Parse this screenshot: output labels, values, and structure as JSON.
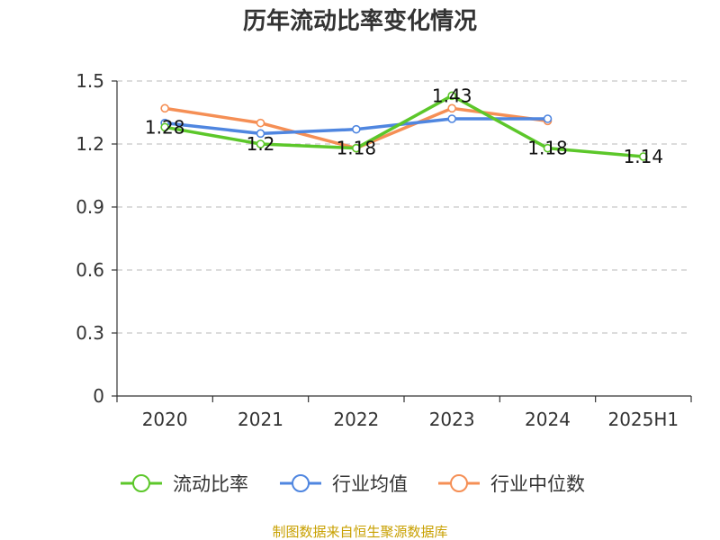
{
  "chart_data": {
    "type": "line",
    "title": "历年流动比率变化情况",
    "xlabel": "",
    "ylabel": "",
    "categories": [
      "2020",
      "2021",
      "2022",
      "2023",
      "2024",
      "2025H1"
    ],
    "ylim": [
      0,
      1.5
    ],
    "yticks": [
      "0",
      "0.3",
      "0.6",
      "0.9",
      "1.2",
      "1.5"
    ],
    "grid": true,
    "legend_position": "bottom",
    "series": [
      {
        "name": "流动比率",
        "color": "#5cc72a",
        "values": [
          1.28,
          1.2,
          1.18,
          1.43,
          1.18,
          1.14
        ],
        "labels": [
          "1.28",
          "1.2",
          "1.18",
          "1.43",
          "1.18",
          "1.14"
        ]
      },
      {
        "name": "行业均值",
        "color": "#4f86e0",
        "values": [
          1.3,
          1.25,
          1.27,
          1.32,
          1.32,
          null
        ]
      },
      {
        "name": "行业中位数",
        "color": "#f58f55",
        "values": [
          1.37,
          1.3,
          1.18,
          1.37,
          1.31,
          null
        ]
      }
    ]
  },
  "source": "制图数据来自恒生聚源数据库"
}
